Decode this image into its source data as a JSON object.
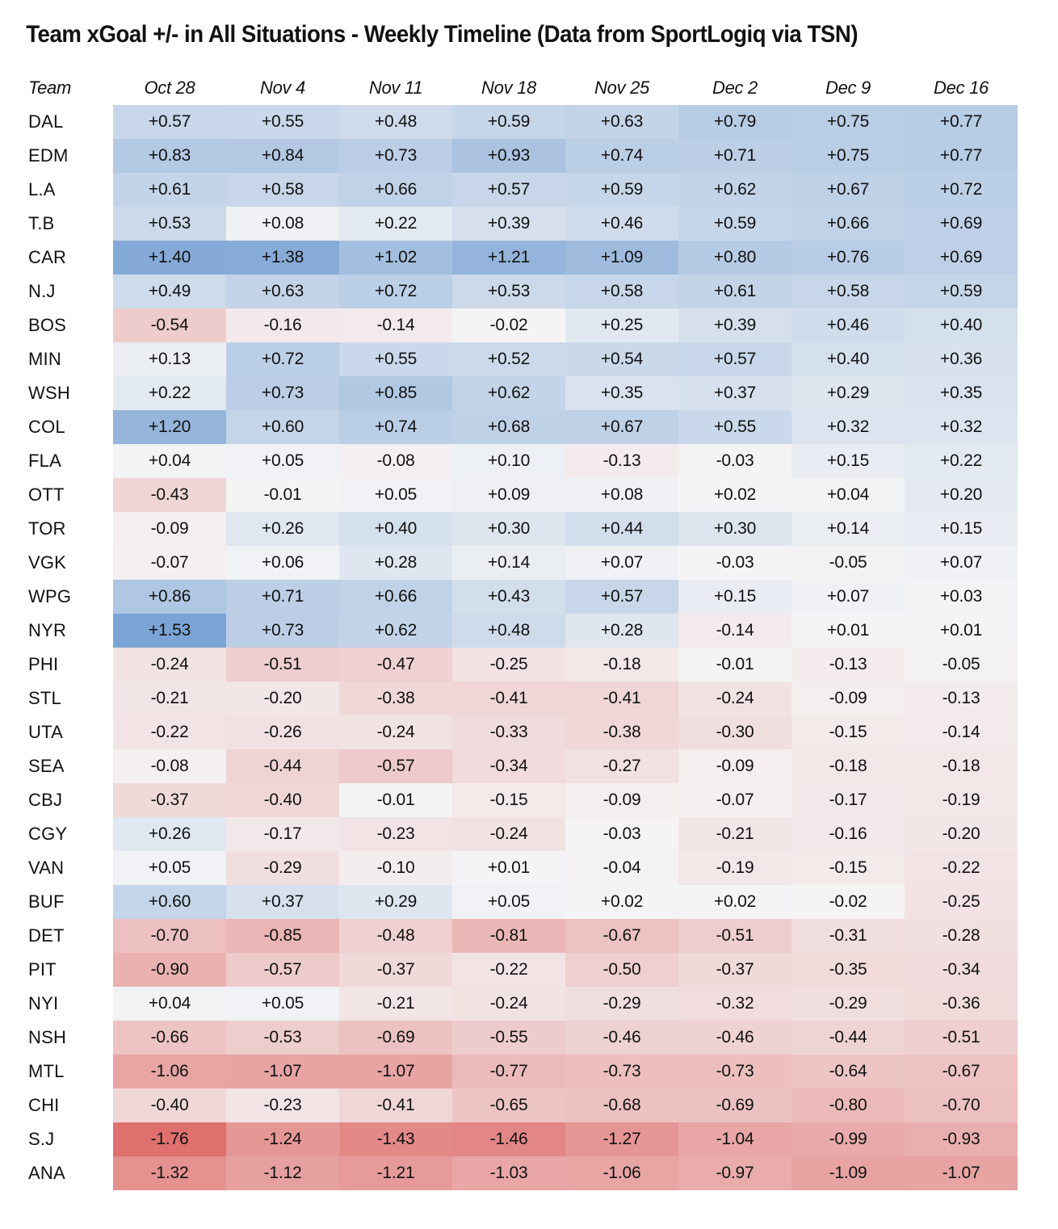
{
  "chart_data": {
    "type": "heatmap",
    "title": "Team xGoal +/- in All Situations - Weekly Timeline (Data from SportLogiq via TSN)",
    "row_header_label": "Team",
    "columns": [
      "Oct 28",
      "Nov 4",
      "Nov 11",
      "Nov 18",
      "Nov 25",
      "Dec 2",
      "Dec 9",
      "Dec 16"
    ],
    "rows": [
      {
        "team": "DAL",
        "values": [
          0.57,
          0.55,
          0.48,
          0.59,
          0.63,
          0.79,
          0.75,
          0.77
        ]
      },
      {
        "team": "EDM",
        "values": [
          0.83,
          0.84,
          0.73,
          0.93,
          0.74,
          0.71,
          0.75,
          0.77
        ]
      },
      {
        "team": "L.A",
        "values": [
          0.61,
          0.58,
          0.66,
          0.57,
          0.59,
          0.62,
          0.67,
          0.72
        ]
      },
      {
        "team": "T.B",
        "values": [
          0.53,
          0.08,
          0.22,
          0.39,
          0.46,
          0.59,
          0.66,
          0.69
        ]
      },
      {
        "team": "CAR",
        "values": [
          1.4,
          1.38,
          1.02,
          1.21,
          1.09,
          0.8,
          0.76,
          0.69
        ]
      },
      {
        "team": "N.J",
        "values": [
          0.49,
          0.63,
          0.72,
          0.53,
          0.58,
          0.61,
          0.58,
          0.59
        ]
      },
      {
        "team": "BOS",
        "values": [
          -0.54,
          -0.16,
          -0.14,
          -0.02,
          0.25,
          0.39,
          0.46,
          0.4
        ]
      },
      {
        "team": "MIN",
        "values": [
          0.13,
          0.72,
          0.55,
          0.52,
          0.54,
          0.57,
          0.4,
          0.36
        ]
      },
      {
        "team": "WSH",
        "values": [
          0.22,
          0.73,
          0.85,
          0.62,
          0.35,
          0.37,
          0.29,
          0.35
        ]
      },
      {
        "team": "COL",
        "values": [
          1.2,
          0.6,
          0.74,
          0.68,
          0.67,
          0.55,
          0.32,
          0.32
        ]
      },
      {
        "team": "FLA",
        "values": [
          0.04,
          0.05,
          -0.08,
          0.1,
          -0.13,
          -0.03,
          0.15,
          0.22
        ]
      },
      {
        "team": "OTT",
        "values": [
          -0.43,
          -0.01,
          0.05,
          0.09,
          0.08,
          0.02,
          0.04,
          0.2
        ]
      },
      {
        "team": "TOR",
        "values": [
          -0.09,
          0.26,
          0.4,
          0.3,
          0.44,
          0.3,
          0.14,
          0.15
        ]
      },
      {
        "team": "VGK",
        "values": [
          -0.07,
          0.06,
          0.28,
          0.14,
          0.07,
          -0.03,
          -0.05,
          0.07
        ]
      },
      {
        "team": "WPG",
        "values": [
          0.86,
          0.71,
          0.66,
          0.43,
          0.57,
          0.15,
          0.07,
          0.03
        ]
      },
      {
        "team": "NYR",
        "values": [
          1.53,
          0.73,
          0.62,
          0.48,
          0.28,
          -0.14,
          0.01,
          0.01
        ]
      },
      {
        "team": "PHI",
        "values": [
          -0.24,
          -0.51,
          -0.47,
          -0.25,
          -0.18,
          -0.01,
          -0.13,
          -0.05
        ]
      },
      {
        "team": "STL",
        "values": [
          -0.21,
          -0.2,
          -0.38,
          -0.41,
          -0.41,
          -0.24,
          -0.09,
          -0.13
        ]
      },
      {
        "team": "UTA",
        "values": [
          -0.22,
          -0.26,
          -0.24,
          -0.33,
          -0.38,
          -0.3,
          -0.15,
          -0.14
        ]
      },
      {
        "team": "SEA",
        "values": [
          -0.08,
          -0.44,
          -0.57,
          -0.34,
          -0.27,
          -0.09,
          -0.18,
          -0.18
        ]
      },
      {
        "team": "CBJ",
        "values": [
          -0.37,
          -0.4,
          -0.01,
          -0.15,
          -0.09,
          -0.07,
          -0.17,
          -0.19
        ]
      },
      {
        "team": "CGY",
        "values": [
          0.26,
          -0.17,
          -0.23,
          -0.24,
          -0.03,
          -0.21,
          -0.16,
          -0.2
        ]
      },
      {
        "team": "VAN",
        "values": [
          0.05,
          -0.29,
          -0.1,
          0.01,
          -0.04,
          -0.19,
          -0.15,
          -0.22
        ]
      },
      {
        "team": "BUF",
        "values": [
          0.6,
          0.37,
          0.29,
          0.05,
          0.02,
          0.02,
          -0.02,
          -0.25
        ]
      },
      {
        "team": "DET",
        "values": [
          -0.7,
          -0.85,
          -0.48,
          -0.81,
          -0.67,
          -0.51,
          -0.31,
          -0.28
        ]
      },
      {
        "team": "PIT",
        "values": [
          -0.9,
          -0.57,
          -0.37,
          -0.22,
          -0.5,
          -0.37,
          -0.35,
          -0.34
        ]
      },
      {
        "team": "NYI",
        "values": [
          0.04,
          0.05,
          -0.21,
          -0.24,
          -0.29,
          -0.32,
          -0.29,
          -0.36
        ]
      },
      {
        "team": "NSH",
        "values": [
          -0.66,
          -0.53,
          -0.69,
          -0.55,
          -0.46,
          -0.46,
          -0.44,
          -0.51
        ]
      },
      {
        "team": "MTL",
        "values": [
          -1.06,
          -1.07,
          -1.07,
          -0.77,
          -0.73,
          -0.73,
          -0.64,
          -0.67
        ]
      },
      {
        "team": "CHI",
        "values": [
          -0.4,
          -0.23,
          -0.41,
          -0.65,
          -0.68,
          -0.69,
          -0.8,
          -0.7
        ]
      },
      {
        "team": "S.J",
        "values": [
          -1.76,
          -1.24,
          -1.43,
          -1.46,
          -1.27,
          -1.04,
          -0.99,
          -0.93
        ]
      },
      {
        "team": "ANA",
        "values": [
          -1.32,
          -1.12,
          -1.21,
          -1.03,
          -1.06,
          -0.97,
          -1.09,
          -1.07
        ]
      }
    ],
    "color_scale": {
      "positive_max": "#6595ce",
      "negative_max": "#de6d6b",
      "neutral": "#f5f5f6",
      "domain": [
        -1.8,
        1.8
      ]
    },
    "value_format": "signed two decimals (+0.00 / -0.00)",
    "legend": "none",
    "grid": "off"
  }
}
